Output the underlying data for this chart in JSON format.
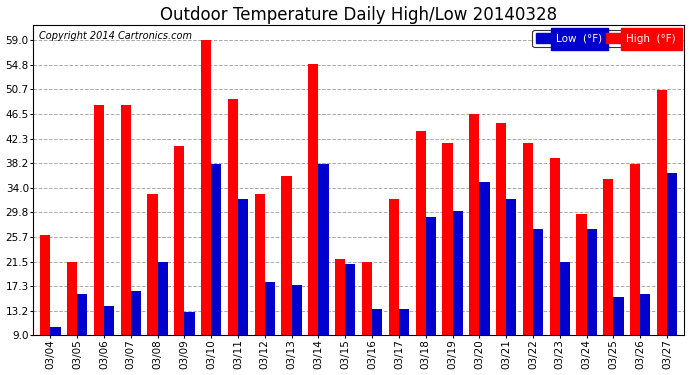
{
  "title": "Outdoor Temperature Daily High/Low 20140328",
  "copyright": "Copyright 2014 Cartronics.com",
  "legend_low": "Low  (°F)",
  "legend_high": "High  (°F)",
  "dates": [
    "03/04",
    "03/05",
    "03/06",
    "03/07",
    "03/08",
    "03/09",
    "03/10",
    "03/11",
    "03/12",
    "03/13",
    "03/14",
    "03/15",
    "03/16",
    "03/17",
    "03/18",
    "03/19",
    "03/20",
    "03/21",
    "03/22",
    "03/23",
    "03/24",
    "03/25",
    "03/26",
    "03/27"
  ],
  "high": [
    26.0,
    21.5,
    48.0,
    48.0,
    33.0,
    41.0,
    59.0,
    49.0,
    33.0,
    36.0,
    55.0,
    22.0,
    21.5,
    32.0,
    43.5,
    41.5,
    46.5,
    45.0,
    41.5,
    39.0,
    29.5,
    35.5,
    38.0,
    50.5
  ],
  "low": [
    10.5,
    16.0,
    14.0,
    16.5,
    21.5,
    13.0,
    38.0,
    32.0,
    18.0,
    17.5,
    38.0,
    21.0,
    13.5,
    13.5,
    29.0,
    30.0,
    35.0,
    32.0,
    27.0,
    21.5,
    27.0,
    15.5,
    16.0,
    36.5
  ],
  "high_color": "#ff0000",
  "low_color": "#0000cc",
  "background_color": "#ffffff",
  "grid_color": "#aaaaaa",
  "ylim": [
    9.0,
    61.5
  ],
  "yticks": [
    9.0,
    13.2,
    17.3,
    21.5,
    25.7,
    29.8,
    34.0,
    38.2,
    42.3,
    46.5,
    50.7,
    54.8,
    59.0
  ],
  "title_fontsize": 12,
  "copyright_fontsize": 7,
  "tick_fontsize": 7.5,
  "bar_bottom": 9.0
}
